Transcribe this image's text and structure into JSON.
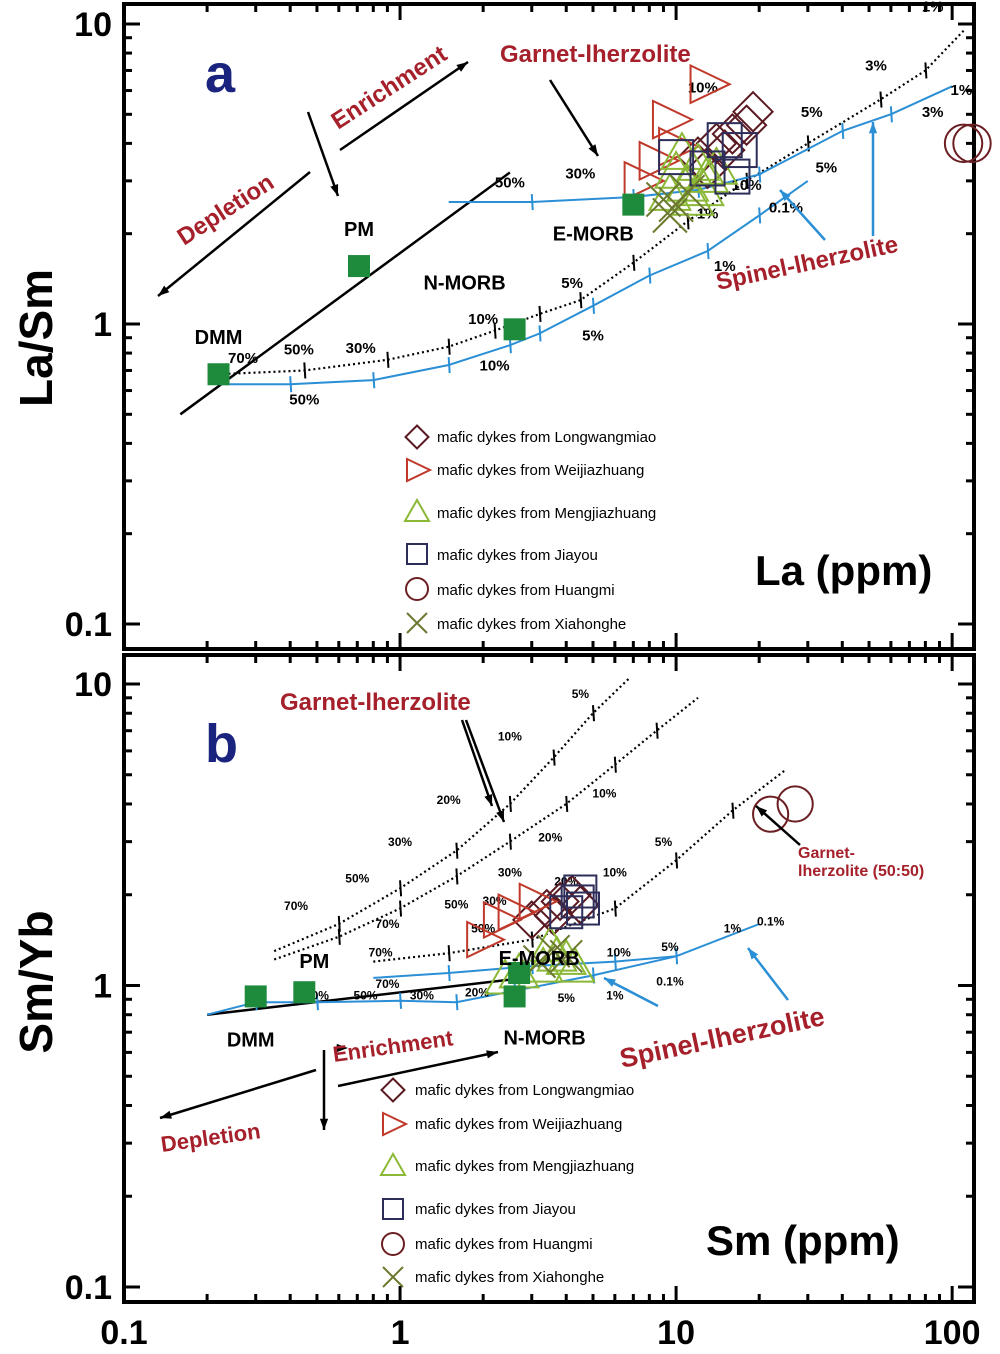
{
  "chart_data": [
    {
      "panel": "a",
      "type": "scatter",
      "xlabel": "La (ppm)",
      "ylabel": "La/Sm",
      "xscale": "log",
      "yscale": "log",
      "ylim": [
        0.1,
        10
      ],
      "y_ticks": [
        {
          "value": 0.1,
          "label": "0.1"
        },
        {
          "value": 1,
          "label": "1"
        },
        {
          "value": 10,
          "label": "10"
        }
      ],
      "reference_points": [
        {
          "name": "DMM",
          "x": 0.22,
          "y": 0.68
        },
        {
          "name": "PM",
          "x": 0.71,
          "y": 1.56
        },
        {
          "name": "N-MORB",
          "x": 2.6,
          "y": 0.96
        },
        {
          "name": "E-MORB",
          "x": 7,
          "y": 2.5
        }
      ],
      "melting_curves": [
        {
          "name": "Garnet-lherzolite",
          "style": "dotted",
          "x": [
            0.22,
            0.45,
            0.9,
            1.5,
            2.2,
            3.2,
            4.5,
            7,
            11,
            18,
            30,
            55,
            80,
            110
          ],
          "y": [
            0.68,
            0.7,
            0.76,
            0.84,
            0.95,
            1.08,
            1.2,
            1.6,
            2.2,
            3.0,
            4.0,
            5.6,
            7.0,
            9.5
          ]
        },
        {
          "name": "Spinel-lherzolite",
          "style": "solid",
          "x": [
            0.22,
            0.4,
            0.8,
            1.5,
            2.5,
            3.2,
            5,
            8,
            13,
            20,
            30
          ],
          "y": [
            0.63,
            0.63,
            0.65,
            0.73,
            0.85,
            0.93,
            1.15,
            1.45,
            1.75,
            2.3,
            3.0
          ]
        },
        {
          "name": "Spinel-lherzolite (E-MORB source)",
          "style": "solid",
          "x": [
            1.5,
            3,
            7,
            12,
            20,
            40,
            60,
            100,
            130
          ],
          "y": [
            2.55,
            2.55,
            2.65,
            2.8,
            3.15,
            4.4,
            5.0,
            6.2,
            7.0
          ]
        }
      ],
      "mixing_line": {
        "x": [
          0.16,
          2.5
        ],
        "y": [
          0.5,
          3.2
        ]
      },
      "curve_labels": [
        {
          "text": "70%",
          "x": 0.27,
          "y": 0.74
        },
        {
          "text": "50%",
          "x": 0.43,
          "y": 0.79
        },
        {
          "text": "30%",
          "x": 0.72,
          "y": 0.8
        },
        {
          "text": "50%",
          "x": 0.45,
          "y": 0.54
        },
        {
          "text": "10%",
          "x": 2.0,
          "y": 1.0
        },
        {
          "text": "10%",
          "x": 2.2,
          "y": 0.7
        },
        {
          "text": "5%",
          "x": 4.2,
          "y": 1.32
        },
        {
          "text": "5%",
          "x": 5.0,
          "y": 0.88
        },
        {
          "text": "50%",
          "x": 2.5,
          "y": 2.85
        },
        {
          "text": "30%",
          "x": 4.5,
          "y": 3.05
        },
        {
          "text": "10%",
          "x": 12.5,
          "y": 5.9
        },
        {
          "text": "1%",
          "x": 13,
          "y": 2.25
        },
        {
          "text": "1%",
          "x": 15,
          "y": 1.5
        },
        {
          "text": "10%",
          "x": 18,
          "y": 2.8
        },
        {
          "text": "0.1%",
          "x": 25,
          "y": 2.35
        },
        {
          "text": "5%",
          "x": 31,
          "y": 4.9
        },
        {
          "text": "5%",
          "x": 35,
          "y": 3.2
        },
        {
          "text": "3%",
          "x": 53,
          "y": 7.0
        },
        {
          "text": "3%",
          "x": 85,
          "y": 4.9
        },
        {
          "text": "1%",
          "x": 85,
          "y": 11.0
        },
        {
          "text": "1%",
          "x": 108,
          "y": 5.8
        }
      ],
      "annotations": [
        {
          "text": "Garnet-lherzolite",
          "x": 8,
          "y": 9.2
        },
        {
          "text": "Spinel-lherzolite",
          "x": 55,
          "y": 1.6
        },
        {
          "text": "Enrichment",
          "x": 0.9,
          "y": 5.0
        },
        {
          "text": "Depletion",
          "x": 0.25,
          "y": 2.0
        }
      ],
      "series": [
        {
          "name": "mafic dykes from Longwangmiao",
          "marker": "diamond",
          "color": "#5b1a22",
          "x": [
            12,
            14,
            15,
            16,
            18,
            19,
            13
          ],
          "y": [
            3.6,
            4.0,
            3.8,
            4.3,
            4.6,
            5.1,
            3.3
          ]
        },
        {
          "name": "mafic dykes from Weijiazhuang",
          "marker": "triangle-right",
          "color": "#c0392b",
          "x": [
            13,
            9.5,
            8.5,
            10,
            7.5
          ],
          "y": [
            6.3,
            4.8,
            3.5,
            3.9,
            3.0
          ]
        },
        {
          "name": "mafic dykes from Mengjiazhuang",
          "marker": "triangle",
          "color": "#8bb836",
          "x": [
            10,
            11,
            12,
            11.5,
            13,
            12.5,
            10.5,
            14,
            9.5
          ],
          "y": [
            3.2,
            2.9,
            3.4,
            2.6,
            3.1,
            2.8,
            3.7,
            3.3,
            2.7
          ]
        },
        {
          "name": "mafic dykes from Jiayou",
          "marker": "square",
          "color": "#2d2d5a",
          "x": [
            10,
            13,
            16,
            17,
            15
          ],
          "y": [
            3.6,
            3.3,
            3.1,
            3.8,
            4.1
          ]
        },
        {
          "name": "mafic dykes from Huangmi",
          "marker": "circle",
          "color": "#6b1f22",
          "x": [
            110,
            125
          ],
          "y": [
            4.0,
            4.0
          ]
        },
        {
          "name": "mafic dykes from Xiahonghe",
          "marker": "x",
          "color": "#6b7a2e",
          "x": [
            9,
            10,
            11,
            9.5
          ],
          "y": [
            2.6,
            2.5,
            2.75,
            2.3
          ]
        }
      ]
    },
    {
      "panel": "b",
      "type": "scatter",
      "xlabel": "Sm (ppm)",
      "ylabel": "Sm/Yb",
      "xscale": "log",
      "yscale": "log",
      "xlim": [
        0.1,
        120
      ],
      "ylim": [
        0.1,
        12
      ],
      "x_ticks": [
        {
          "value": 0.1,
          "label": "0.1"
        },
        {
          "value": 1,
          "label": "1"
        },
        {
          "value": 10,
          "label": "10"
        },
        {
          "value": 100,
          "label": "100"
        }
      ],
      "y_ticks": [
        {
          "value": 0.1,
          "label": "0.1"
        },
        {
          "value": 1,
          "label": "1"
        },
        {
          "value": 10,
          "label": "10"
        }
      ],
      "reference_points": [
        {
          "name": "DMM",
          "x": 0.3,
          "y": 0.92
        },
        {
          "name": "PM",
          "x": 0.45,
          "y": 0.95
        },
        {
          "name": "N-MORB",
          "x": 2.6,
          "y": 0.92
        },
        {
          "name": "E-MORB",
          "x": 2.7,
          "y": 1.1
        }
      ],
      "melting_curves": [
        {
          "name": "Garnet-lherzolite (upper)",
          "style": "dotted",
          "x": [
            0.35,
            0.6,
            1.0,
            1.6,
            2.5,
            3.6,
            5.0,
            6.8,
            10
          ],
          "y": [
            1.3,
            1.6,
            2.1,
            2.8,
            4.0,
            5.7,
            8.0,
            10.5,
            14.0
          ]
        },
        {
          "name": "Garnet-lherzolite (lower)",
          "style": "dotted",
          "x": [
            0.35,
            0.6,
            1.0,
            1.6,
            2.5,
            4.0,
            6.0,
            8.5,
            12
          ],
          "y": [
            1.22,
            1.45,
            1.8,
            2.3,
            3.0,
            4.0,
            5.4,
            7.0,
            9.0
          ]
        },
        {
          "name": "Garnet-lherzolite (50:50)",
          "style": "dotted",
          "x": [
            0.8,
            1.5,
            3,
            6,
            10,
            16,
            25
          ],
          "y": [
            1.2,
            1.28,
            1.42,
            1.8,
            2.6,
            3.8,
            5.2
          ]
        },
        {
          "name": "Spinel-lherzolite",
          "style": "solid",
          "x": [
            0.2,
            0.3,
            0.5,
            1.0,
            1.6,
            2.6,
            5,
            10,
            20
          ],
          "y": [
            0.8,
            0.88,
            0.88,
            0.89,
            0.88,
            0.96,
            1.08,
            1.25,
            1.6
          ]
        },
        {
          "name": "Spinel-lherzolite (E-MORB source)",
          "style": "solid",
          "x": [
            0.8,
            1.5,
            3,
            6,
            10
          ],
          "y": [
            1.06,
            1.1,
            1.16,
            1.2,
            1.25
          ]
        }
      ],
      "mixing_line": {
        "x": [
          0.2,
          2.6
        ],
        "y": [
          0.8,
          1.05
        ]
      },
      "curve_labels": [
        {
          "text": "70%",
          "x": 0.42,
          "y": 1.78
        },
        {
          "text": "50%",
          "x": 0.7,
          "y": 2.2
        },
        {
          "text": "30%",
          "x": 1.0,
          "y": 2.9
        },
        {
          "text": "20%",
          "x": 1.5,
          "y": 4.0
        },
        {
          "text": "10%",
          "x": 2.5,
          "y": 6.5
        },
        {
          "text": "5%",
          "x": 4.5,
          "y": 9.0
        },
        {
          "text": "70%",
          "x": 0.9,
          "y": 1.55
        },
        {
          "text": "50%",
          "x": 1.6,
          "y": 1.8
        },
        {
          "text": "30%",
          "x": 2.5,
          "y": 2.3
        },
        {
          "text": "20%",
          "x": 3.5,
          "y": 3.0
        },
        {
          "text": "10%",
          "x": 5.5,
          "y": 4.2
        },
        {
          "text": "70%",
          "x": 0.85,
          "y": 1.25
        },
        {
          "text": "50%",
          "x": 2.0,
          "y": 1.5
        },
        {
          "text": "30%",
          "x": 2.2,
          "y": 1.85
        },
        {
          "text": "20%",
          "x": 4.0,
          "y": 2.15
        },
        {
          "text": "10%",
          "x": 6.0,
          "y": 2.3
        },
        {
          "text": "5%",
          "x": 9.0,
          "y": 2.9
        },
        {
          "text": "70%",
          "x": 0.9,
          "y": 0.98
        },
        {
          "text": "70%",
          "x": 0.5,
          "y": 0.9
        },
        {
          "text": "50%",
          "x": 0.75,
          "y": 0.9
        },
        {
          "text": "30%",
          "x": 1.2,
          "y": 0.9
        },
        {
          "text": "20%",
          "x": 1.9,
          "y": 0.92
        },
        {
          "text": "10%",
          "x": 6.2,
          "y": 1.25
        },
        {
          "text": "5%",
          "x": 9.5,
          "y": 1.3
        },
        {
          "text": "0.1%",
          "x": 9.5,
          "y": 1.0
        },
        {
          "text": "5%",
          "x": 4.0,
          "y": 0.88
        },
        {
          "text": "1%",
          "x": 6.0,
          "y": 0.9
        },
        {
          "text": "1%",
          "x": 16,
          "y": 1.5
        },
        {
          "text": "0.1%",
          "x": 22,
          "y": 1.58
        }
      ],
      "annotations": [
        {
          "text": "Garnet-lherzolite",
          "x": 1.5,
          "y": 8.5
        },
        {
          "text": "Garnet-lherzolite (50:50)",
          "x": 40,
          "y": 2.2
        },
        {
          "text": "Spinel-lherzolite",
          "x": 12,
          "y": 0.8
        },
        {
          "text": "Enrichment",
          "x": 1.3,
          "y": 0.72
        },
        {
          "text": "Depletion",
          "x": 0.35,
          "y": 0.38
        }
      ],
      "series": [
        {
          "name": "mafic dykes from Longwangmiao",
          "marker": "diamond",
          "color": "#5b1a22",
          "x": [
            3.0,
            3.4,
            3.8,
            4.2,
            3.6,
            4.5
          ],
          "y": [
            1.65,
            1.8,
            1.9,
            2.0,
            1.7,
            1.85
          ]
        },
        {
          "name": "mafic dykes from Weijiazhuang",
          "marker": "triangle-right",
          "color": "#c0392b",
          "x": [
            2.0,
            2.3,
            2.6,
            3.1
          ],
          "y": [
            1.42,
            1.65,
            1.75,
            1.9
          ]
        },
        {
          "name": "mafic dykes from Mengjiazhuang",
          "marker": "triangle",
          "color": "#8bb836",
          "x": [
            2.4,
            2.7,
            3.3,
            3.7,
            4.0,
            4.3,
            3.5
          ],
          "y": [
            1.05,
            1.1,
            1.15,
            1.25,
            1.22,
            1.15,
            1.35
          ]
        },
        {
          "name": "mafic dykes from Jiayou",
          "marker": "square",
          "color": "#2d2d5a",
          "x": [
            4.0,
            4.4,
            4.5,
            4.6
          ],
          "y": [
            1.75,
            1.9,
            2.05,
            1.8
          ]
        },
        {
          "name": "mafic dykes from Huangmi",
          "marker": "circle",
          "color": "#6b1f22",
          "x": [
            22,
            27
          ],
          "y": [
            3.7,
            4.0
          ]
        },
        {
          "name": "mafic dykes from Xiahonghe",
          "marker": "x",
          "color": "#6b7a2e",
          "x": [
            3.2,
            3.6,
            4.0
          ],
          "y": [
            1.2,
            1.3,
            1.25
          ]
        }
      ]
    }
  ],
  "labels": {
    "panel_a": "a",
    "panel_b": "b",
    "a_ylabel": "La/Sm",
    "a_xlabel": "La (ppm)",
    "b_ylabel": "Sm/Yb",
    "b_xlabel": "Sm (ppm)",
    "a_garnet": "Garnet-lherzolite",
    "a_spinel": "Spinel-lherzolite",
    "a_enrich": "Enrichment",
    "a_deplete": "Depletion",
    "b_garnet": "Garnet-lherzolite",
    "b_garnet5050_l1": "Garnet-",
    "b_garnet5050_l2": "lherzolite (50:50)",
    "b_spinel": "Spinel-lherzolite",
    "b_enrich": "Enrichment",
    "b_deplete": "Depletion"
  },
  "legend": [
    "mafic dykes from Longwangmiao",
    "mafic dykes from Weijiazhuang",
    "mafic dykes from Mengjiazhuang",
    "mafic dykes from Jiayou",
    "mafic dykes from Huangmi",
    "mafic dykes from Xiahonghe"
  ],
  "colors": {
    "frame": "#000000",
    "curve_blue": "#2b8fd6",
    "ref_green": "#1e8a3c",
    "annotation_red": "#a5202a",
    "panel_label": "#1a237e"
  }
}
